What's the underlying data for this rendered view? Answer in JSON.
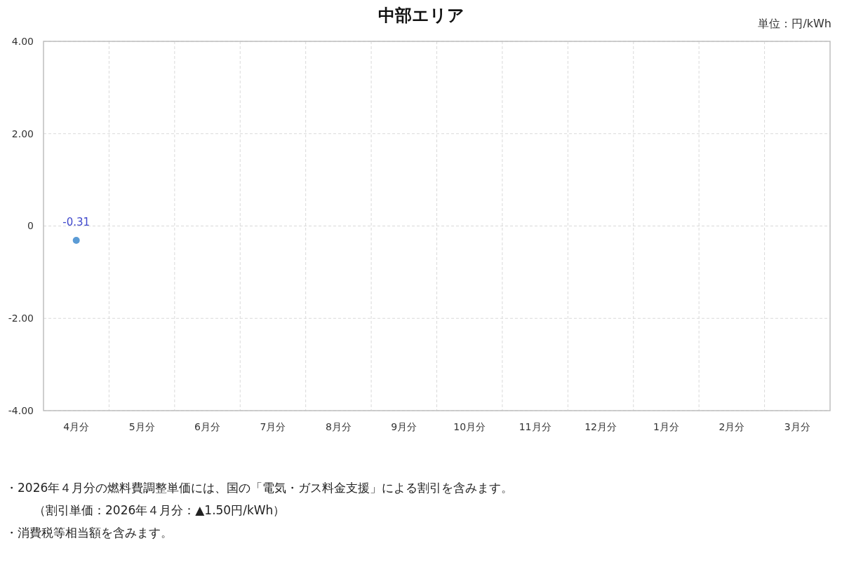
{
  "chart_data": {
    "type": "line",
    "title": "中部エリア",
    "annotations": [
      "単位：円/kWh",
      "・2026年４月分の燃料費調整単価には、国の「電気・ガス料金支援」による割引を含みます。",
      "（割引単価：2026年４月分：▲1.50円/kWh）",
      "・消費税等相当額を含みます。"
    ],
    "categories": [
      "4月分",
      "5月分",
      "6月分",
      "7月分",
      "8月分",
      "9月分",
      "10月分",
      "11月分",
      "12月分",
      "1月分",
      "2月分",
      "3月分"
    ],
    "series": [
      {
        "color": "#5b9bd5",
        "values": [
          -0.31,
          null,
          null,
          null,
          null,
          null,
          null,
          null,
          null,
          null,
          null,
          null
        ]
      }
    ],
    "ylim": [
      -4,
      4
    ],
    "yticks": [
      {
        "value": 4,
        "label": "4.00"
      },
      {
        "value": 2,
        "label": "2.00"
      },
      0,
      {
        "value": -2,
        "label": "-2.00"
      },
      {
        "value": -4,
        "label": "-4.00"
      }
    ],
    "grid": true,
    "marker": "circle",
    "data_labels": true
  }
}
